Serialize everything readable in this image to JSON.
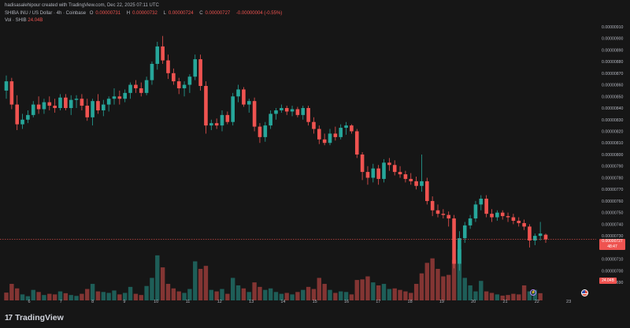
{
  "header": {
    "attribution": "hadisasalehipour created with TradingView.com, Dec 22, 2025 07:11 UTC",
    "symbol": "SHIBA INU / US Dollar · 4h · Coinbase",
    "ohlc": {
      "open_label": "O",
      "open": "0.00000731",
      "high_label": "H",
      "high": "0.00000732",
      "low_label": "L",
      "low": "0.00000724",
      "close_label": "C",
      "close": "0.00000727",
      "change": "-0.00000004 (-0.55%)"
    },
    "volume_label": "Vol · SHIB",
    "volume_value": "24.04B"
  },
  "price_tag": {
    "price": "0.00000727",
    "countdown": "48:47"
  },
  "volume_tag": "24.04B",
  "footer": {
    "brand": "TradingView",
    "logo_mark": "17"
  },
  "colors": {
    "up": "#26a69a",
    "down": "#ef5350",
    "background": "#161616",
    "text": "#b2b5be"
  },
  "chart_data": {
    "type": "candlestick",
    "title": "SHIBA INU / US Dollar · 4h · Coinbase",
    "interval": "4h",
    "y_ticks": [
      "0.00000910",
      "0.00000900",
      "0.00000890",
      "0.00000880",
      "0.00000870",
      "0.00000860",
      "0.00000850",
      "0.00000840",
      "0.00000830",
      "0.00000820",
      "0.00000810",
      "0.00000800",
      "0.00000790",
      "0.00000780",
      "0.00000770",
      "0.00000760",
      "0.00000750",
      "0.00000740",
      "0.00000730",
      "0.00000720",
      "0.00000710",
      "0.00000700",
      "0.00000690"
    ],
    "y_range": [
      6.86e-06,
      9.16e-06
    ],
    "x_ticks": [
      "6",
      "7",
      "8",
      "9",
      "10",
      "11",
      "12",
      "13",
      "14",
      "15",
      "16",
      "17",
      "18",
      "19",
      "20",
      "21",
      "22",
      "23"
    ],
    "grid": false,
    "ohlc": [
      [
        8.55e-06,
        8.68e-06,
        8.48e-06,
        8.63e-06
      ],
      [
        8.63e-06,
        8.66e-06,
        8.39e-06,
        8.43e-06
      ],
      [
        8.43e-06,
        8.51e-06,
        8.21e-06,
        8.26e-06
      ],
      [
        8.26e-06,
        8.35e-06,
        8.22e-06,
        8.3e-06
      ],
      [
        8.3e-06,
        8.38e-06,
        8.27e-06,
        8.34e-06
      ],
      [
        8.34e-06,
        8.46e-06,
        8.32e-06,
        8.43e-06
      ],
      [
        8.43e-06,
        8.5e-06,
        8.35e-06,
        8.39e-06
      ],
      [
        8.39e-06,
        8.48e-06,
        8.35e-06,
        8.45e-06
      ],
      [
        8.45e-06,
        8.5e-06,
        8.38e-06,
        8.42e-06
      ],
      [
        8.42e-06,
        8.48e-06,
        8.36e-06,
        8.4e-06
      ],
      [
        8.4e-06,
        8.52e-06,
        8.38e-06,
        8.49e-06
      ],
      [
        8.49e-06,
        8.52e-06,
        8.38e-06,
        8.4e-06
      ],
      [
        8.4e-06,
        8.51e-06,
        8.34e-06,
        8.47e-06
      ],
      [
        8.47e-06,
        8.51e-06,
        8.4e-06,
        8.48e-06
      ],
      [
        8.48e-06,
        8.52e-06,
        8.38e-06,
        8.42e-06
      ],
      [
        8.42e-06,
        8.48e-06,
        8.29e-06,
        8.32e-06
      ],
      [
        8.32e-06,
        8.48e-06,
        8.25e-06,
        8.46e-06
      ],
      [
        8.46e-06,
        8.52e-06,
        8.35e-06,
        8.38e-06
      ],
      [
        8.38e-06,
        8.47e-06,
        8.33e-06,
        8.43e-06
      ],
      [
        8.43e-06,
        8.5e-06,
        8.37e-06,
        8.48e-06
      ],
      [
        8.48e-06,
        8.57e-06,
        8.43e-06,
        8.5e-06
      ],
      [
        8.5e-06,
        8.55e-06,
        8.43e-06,
        8.48e-06
      ],
      [
        8.48e-06,
        8.56e-06,
        8.45e-06,
        8.53e-06
      ],
      [
        8.53e-06,
        8.62e-06,
        8.48e-06,
        8.6e-06
      ],
      [
        8.6e-06,
        8.64e-06,
        8.53e-06,
        8.57e-06
      ],
      [
        8.57e-06,
        8.62e-06,
        8.5e-06,
        8.53e-06
      ],
      [
        8.53e-06,
        8.67e-06,
        8.51e-06,
        8.64e-06
      ],
      [
        8.64e-06,
        8.8e-06,
        8.6e-06,
        8.78e-06
      ],
      [
        8.78e-06,
        8.97e-06,
        8.73e-06,
        8.93e-06
      ],
      [
        8.93e-06,
        9.02e-06,
        8.78e-06,
        8.81e-06
      ],
      [
        8.81e-06,
        8.86e-06,
        8.65e-06,
        8.7e-06
      ],
      [
        8.7e-06,
        8.74e-06,
        8.6e-06,
        8.63e-06
      ],
      [
        8.63e-06,
        8.66e-06,
        8.52e-06,
        8.57e-06
      ],
      [
        8.57e-06,
        8.63e-06,
        8.5e-06,
        8.6e-06
      ],
      [
        8.6e-06,
        8.69e-06,
        8.53e-06,
        8.67e-06
      ],
      [
        8.67e-06,
        8.86e-06,
        8.64e-06,
        8.82e-06
      ],
      [
        8.82e-06,
        8.86e-06,
        8.55e-06,
        8.59e-06
      ],
      [
        8.59e-06,
        8.63e-06,
        8.18e-06,
        8.25e-06
      ],
      [
        8.25e-06,
        8.3e-06,
        8.21e-06,
        8.27e-06
      ],
      [
        8.27e-06,
        8.31e-06,
        8.22e-06,
        8.25e-06
      ],
      [
        8.25e-06,
        8.38e-06,
        8.2e-06,
        8.34e-06
      ],
      [
        8.34e-06,
        8.37e-06,
        8.26e-06,
        8.28e-06
      ],
      [
        8.28e-06,
        8.53e-06,
        8.25e-06,
        8.5e-06
      ],
      [
        8.5e-06,
        8.6e-06,
        8.45e-06,
        8.56e-06
      ],
      [
        8.56e-06,
        8.58e-06,
        8.41e-06,
        8.43e-06
      ],
      [
        8.43e-06,
        8.48e-06,
        8.36e-06,
        8.46e-06
      ],
      [
        8.46e-06,
        8.49e-06,
        8.2e-06,
        8.24e-06
      ],
      [
        8.24e-06,
        8.27e-06,
        8.1e-06,
        8.15e-06
      ],
      [
        8.15e-06,
        8.28e-06,
        8.11e-06,
        8.25e-06
      ],
      [
        8.25e-06,
        8.38e-06,
        8.22e-06,
        8.35e-06
      ],
      [
        8.35e-06,
        8.4e-06,
        8.3e-06,
        8.38e-06
      ],
      [
        8.38e-06,
        8.43e-06,
        8.36e-06,
        8.4e-06
      ],
      [
        8.4e-06,
        8.42e-06,
        8.34e-06,
        8.37e-06
      ],
      [
        8.37e-06,
        8.42e-06,
        8.33e-06,
        8.39e-06
      ],
      [
        8.39e-06,
        8.41e-06,
        8.32e-06,
        8.34e-06
      ],
      [
        8.34e-06,
        8.42e-06,
        8.3e-06,
        8.4e-06
      ],
      [
        8.4e-06,
        8.42e-06,
        8.25e-06,
        8.28e-06
      ],
      [
        8.28e-06,
        8.32e-06,
        8.18e-06,
        8.22e-06
      ],
      [
        8.22e-06,
        8.25e-06,
        8.09e-06,
        8.13e-06
      ],
      [
        8.13e-06,
        8.18e-06,
        8.08e-06,
        8.1e-06
      ],
      [
        8.1e-06,
        8.22e-06,
        8.08e-06,
        8.18e-06
      ],
      [
        8.18e-06,
        8.24e-06,
        8.12e-06,
        8.15e-06
      ],
      [
        8.15e-06,
        8.26e-06,
        8.13e-06,
        8.23e-06
      ],
      [
        8.23e-06,
        8.28e-06,
        8.17e-06,
        8.25e-06
      ],
      [
        8.25e-06,
        8.26e-06,
        8.18e-06,
        8.2e-06
      ],
      [
        8.2e-06,
        8.22e-06,
        7.97e-06,
        8e-06
      ],
      [
        8e-06,
        8.02e-06,
        7.78e-06,
        7.85e-06
      ],
      [
        7.85e-06,
        7.9e-06,
        7.74e-06,
        7.8e-06
      ],
      [
        7.8e-06,
        7.92e-06,
        7.76e-06,
        7.88e-06
      ],
      [
        7.88e-06,
        7.91e-06,
        7.74e-06,
        7.79e-06
      ],
      [
        7.79e-06,
        7.96e-06,
        7.76e-06,
        7.93e-06
      ],
      [
        7.93e-06,
        7.97e-06,
        7.86e-06,
        7.91e-06
      ],
      [
        7.91e-06,
        7.95e-06,
        7.82e-06,
        7.85e-06
      ],
      [
        7.85e-06,
        7.9e-06,
        7.8e-06,
        7.83e-06
      ],
      [
        7.83e-06,
        7.86e-06,
        7.76e-06,
        7.79e-06
      ],
      [
        7.79e-06,
        7.84e-06,
        7.74e-06,
        7.77e-06
      ],
      [
        7.77e-06,
        7.81e-06,
        7.7e-06,
        7.73e-06
      ],
      [
        7.73e-06,
        8e-06,
        7.68e-06,
        7.77e-06
      ],
      [
        7.77e-06,
        7.8e-06,
        7.57e-06,
        7.6e-06
      ],
      [
        7.6e-06,
        7.64e-06,
        7.47e-06,
        7.52e-06
      ],
      [
        7.52e-06,
        7.57e-06,
        7.46e-06,
        7.49e-06
      ],
      [
        7.49e-06,
        7.53e-06,
        7.45e-06,
        7.48e-06
      ],
      [
        7.48e-06,
        7.51e-06,
        7.38e-06,
        7.45e-06
      ],
      [
        7.45e-06,
        7.48e-06,
        7.02e-06,
        7.06e-06
      ],
      [
        7.06e-06,
        7.34e-06,
        7e-06,
        7.28e-06
      ],
      [
        7.28e-06,
        7.42e-06,
        7.24e-06,
        7.39e-06
      ],
      [
        7.39e-06,
        7.48e-06,
        7.36e-06,
        7.45e-06
      ],
      [
        7.45e-06,
        7.6e-06,
        7.42e-06,
        7.57e-06
      ],
      [
        7.57e-06,
        7.65e-06,
        7.52e-06,
        7.62e-06
      ],
      [
        7.62e-06,
        7.65e-06,
        7.46e-06,
        7.49e-06
      ],
      [
        7.49e-06,
        7.53e-06,
        7.42e-06,
        7.46e-06
      ],
      [
        7.46e-06,
        7.52e-06,
        7.43e-06,
        7.5e-06
      ],
      [
        7.5e-06,
        7.52e-06,
        7.44e-06,
        7.47e-06
      ],
      [
        7.47e-06,
        7.5e-06,
        7.42e-06,
        7.46e-06
      ],
      [
        7.46e-06,
        7.49e-06,
        7.4e-06,
        7.43e-06
      ],
      [
        7.43e-06,
        7.46e-06,
        7.38e-06,
        7.41e-06
      ],
      [
        7.41e-06,
        7.44e-06,
        7.35e-06,
        7.38e-06
      ],
      [
        7.38e-06,
        7.4e-06,
        7.2e-06,
        7.26e-06
      ],
      [
        7.26e-06,
        7.32e-06,
        7.22e-06,
        7.3e-06
      ],
      [
        7.3e-06,
        7.42e-06,
        7.26e-06,
        7.32e-06
      ],
      [
        7.31e-06,
        7.32e-06,
        7.24e-06,
        7.27e-06
      ]
    ],
    "volume_max_billion": 210,
    "volume": [
      [
        26,
        -1
      ],
      [
        55,
        -1
      ],
      [
        40,
        -1
      ],
      [
        20,
        1
      ],
      [
        14,
        1
      ],
      [
        35,
        1
      ],
      [
        28,
        -1
      ],
      [
        18,
        1
      ],
      [
        22,
        -1
      ],
      [
        20,
        -1
      ],
      [
        30,
        1
      ],
      [
        24,
        -1
      ],
      [
        18,
        1
      ],
      [
        15,
        1
      ],
      [
        22,
        -1
      ],
      [
        38,
        -1
      ],
      [
        55,
        1
      ],
      [
        30,
        -1
      ],
      [
        28,
        1
      ],
      [
        25,
        1
      ],
      [
        33,
        1
      ],
      [
        20,
        -1
      ],
      [
        25,
        1
      ],
      [
        45,
        1
      ],
      [
        22,
        -1
      ],
      [
        18,
        -1
      ],
      [
        48,
        1
      ],
      [
        75,
        1
      ],
      [
        150,
        1
      ],
      [
        110,
        -1
      ],
      [
        55,
        -1
      ],
      [
        40,
        -1
      ],
      [
        30,
        -1
      ],
      [
        25,
        1
      ],
      [
        38,
        1
      ],
      [
        130,
        1
      ],
      [
        105,
        -1
      ],
      [
        115,
        -1
      ],
      [
        35,
        1
      ],
      [
        30,
        -1
      ],
      [
        38,
        1
      ],
      [
        22,
        -1
      ],
      [
        75,
        1
      ],
      [
        50,
        1
      ],
      [
        40,
        -1
      ],
      [
        28,
        1
      ],
      [
        60,
        -1
      ],
      [
        45,
        -1
      ],
      [
        35,
        1
      ],
      [
        40,
        1
      ],
      [
        28,
        1
      ],
      [
        22,
        1
      ],
      [
        25,
        -1
      ],
      [
        20,
        1
      ],
      [
        28,
        -1
      ],
      [
        35,
        1
      ],
      [
        45,
        -1
      ],
      [
        38,
        -1
      ],
      [
        75,
        -1
      ],
      [
        55,
        -1
      ],
      [
        35,
        1
      ],
      [
        25,
        -1
      ],
      [
        30,
        1
      ],
      [
        28,
        1
      ],
      [
        20,
        -1
      ],
      [
        68,
        -1
      ],
      [
        70,
        -1
      ],
      [
        80,
        -1
      ],
      [
        60,
        1
      ],
      [
        50,
        -1
      ],
      [
        55,
        1
      ],
      [
        38,
        1
      ],
      [
        40,
        -1
      ],
      [
        35,
        -1
      ],
      [
        30,
        -1
      ],
      [
        25,
        -1
      ],
      [
        55,
        -1
      ],
      [
        90,
        -1
      ],
      [
        125,
        -1
      ],
      [
        140,
        -1
      ],
      [
        105,
        -1
      ],
      [
        80,
        -1
      ],
      [
        85,
        -1
      ],
      [
        135,
        -1
      ],
      [
        170,
        1
      ],
      [
        75,
        1
      ],
      [
        50,
        1
      ],
      [
        30,
        1
      ],
      [
        65,
        1
      ],
      [
        30,
        -1
      ],
      [
        25,
        -1
      ],
      [
        20,
        1
      ],
      [
        16,
        -1
      ],
      [
        18,
        -1
      ],
      [
        22,
        -1
      ],
      [
        20,
        -1
      ],
      [
        50,
        -1
      ],
      [
        30,
        1
      ],
      [
        35,
        1
      ],
      [
        24,
        -1
      ]
    ]
  }
}
